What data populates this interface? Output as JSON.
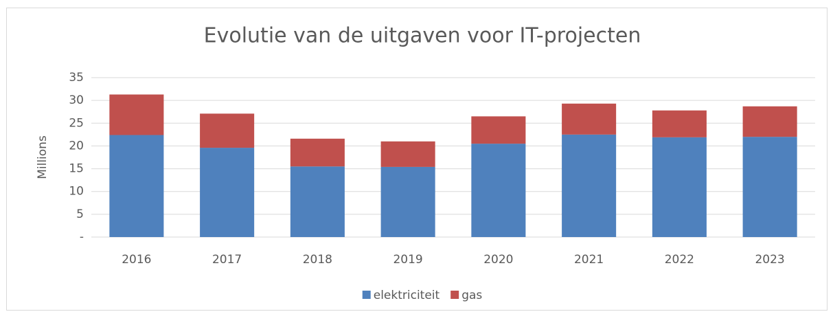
{
  "chart_data": {
    "type": "stacked_bar",
    "title": "Evolutie van de uitgaven voor IT-projecten",
    "y_label": "Millions",
    "categories": [
      "2016",
      "2017",
      "2018",
      "2019",
      "2020",
      "2021",
      "2022",
      "2023"
    ],
    "series": [
      {
        "name": "elektriciteit",
        "color": "#4f81bd",
        "values": [
          22.4,
          19.6,
          15.5,
          15.4,
          20.5,
          22.5,
          21.9,
          22.0
        ]
      },
      {
        "name": "gas",
        "color": "#c0504d",
        "values": [
          8.9,
          7.5,
          6.1,
          5.6,
          6.0,
          6.8,
          5.9,
          6.7
        ]
      }
    ],
    "ylim": [
      0,
      35
    ],
    "yticks": [
      {
        "value": 0,
        "label": "-"
      },
      5,
      10,
      15,
      20,
      25,
      30,
      35
    ],
    "grid": true,
    "legend": "bottom"
  }
}
